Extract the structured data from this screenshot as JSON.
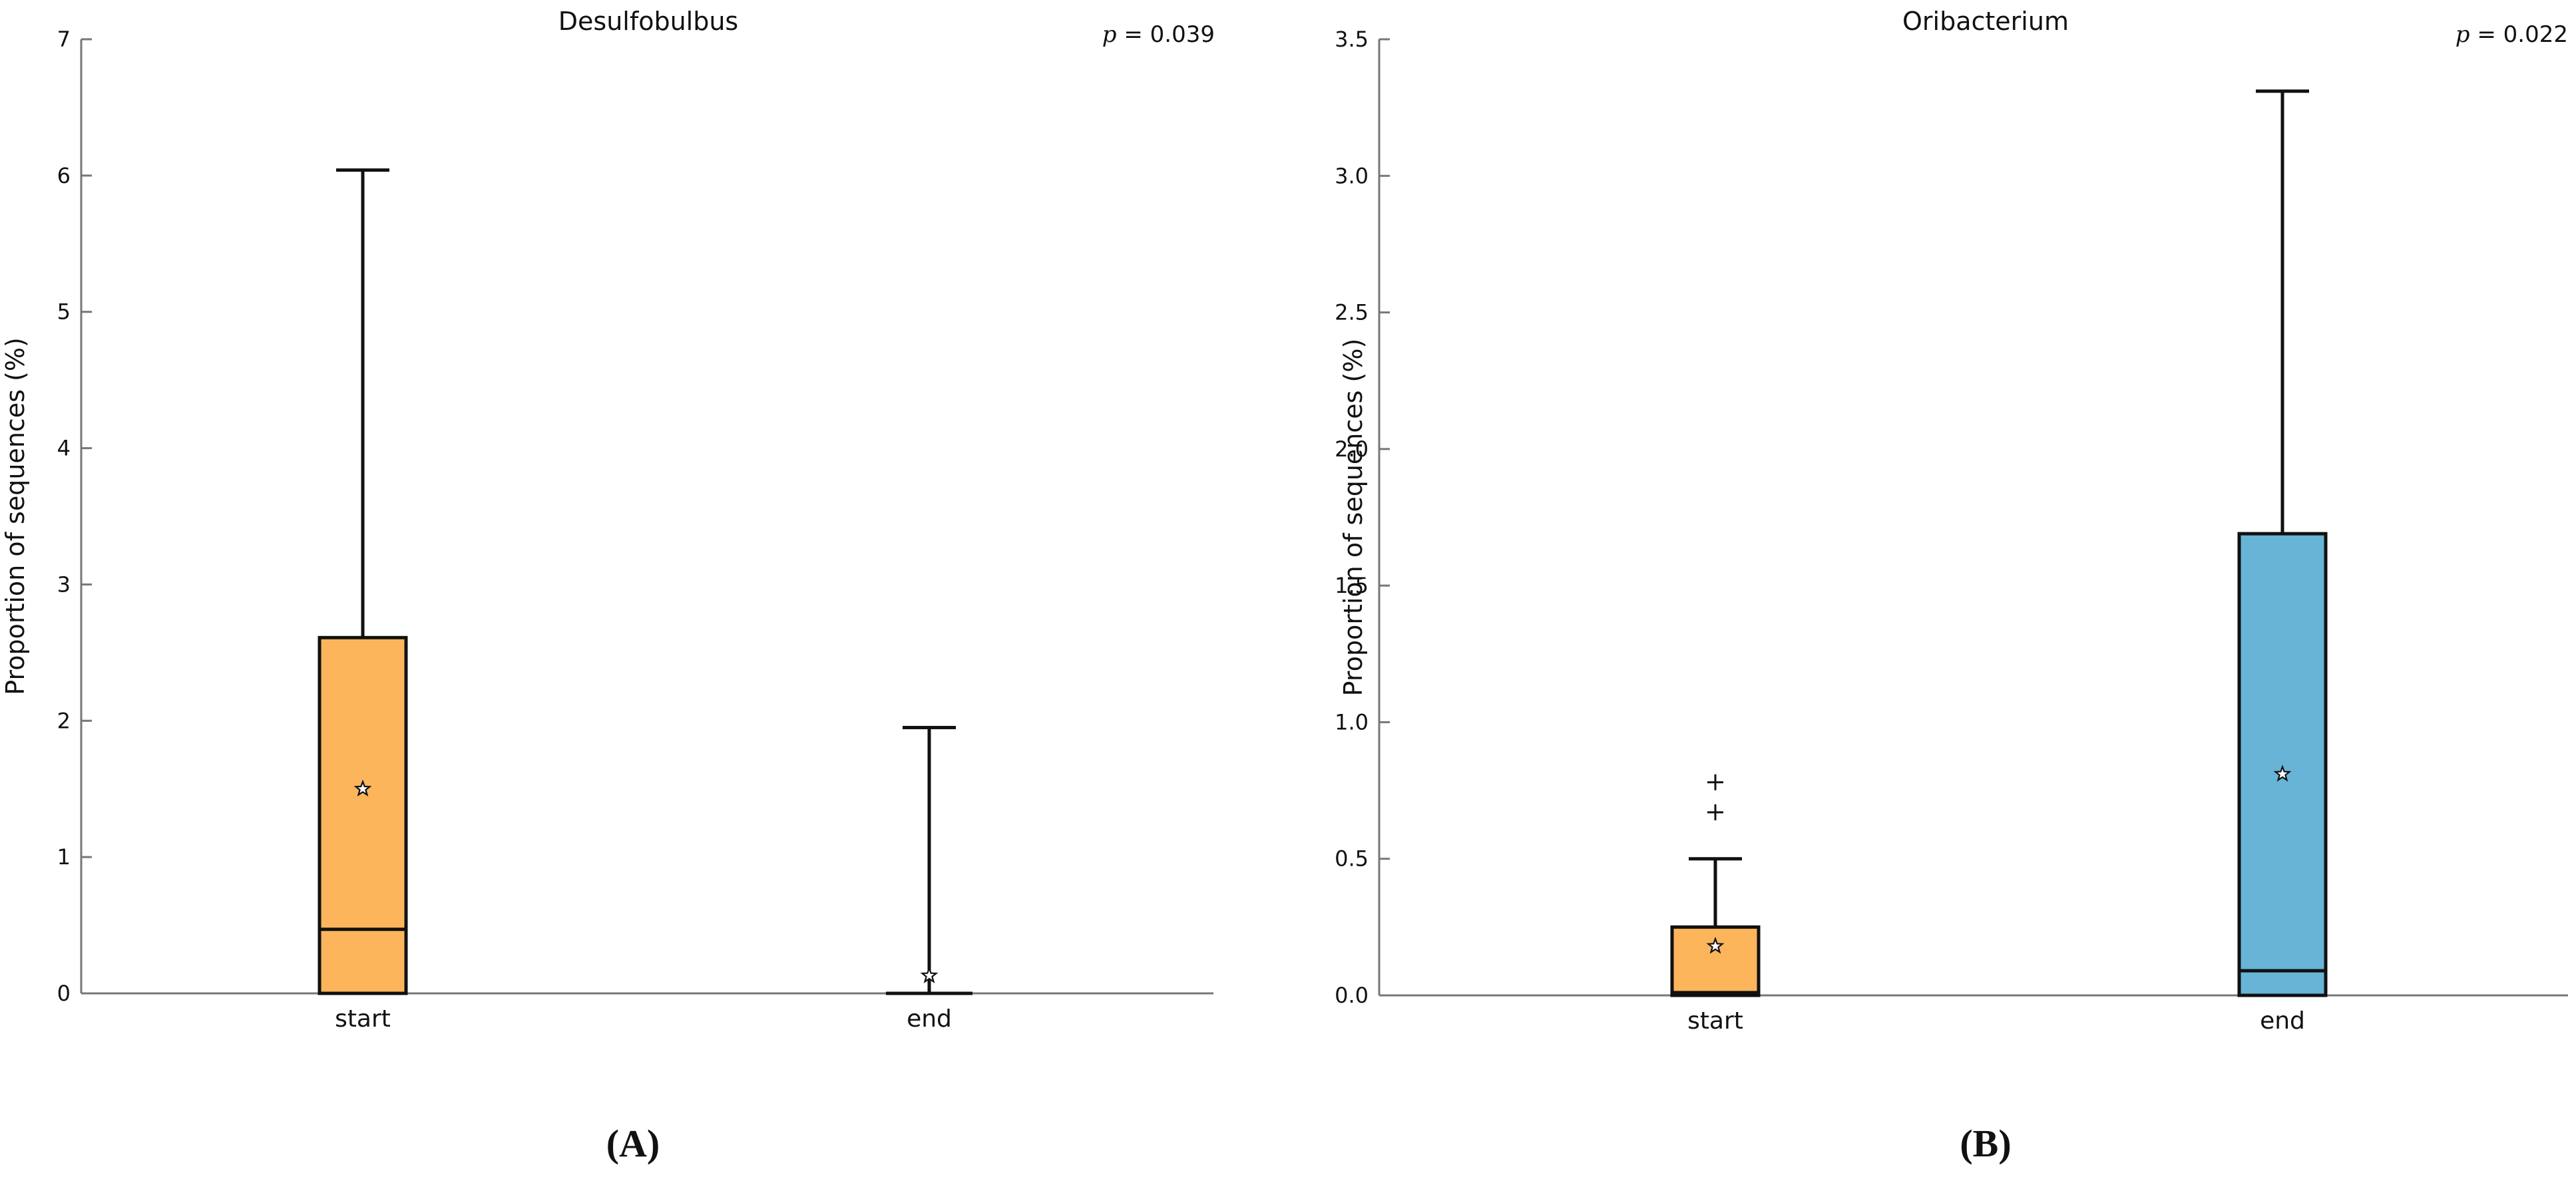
{
  "chart_data": [
    {
      "type": "box",
      "panel_label": "(A)",
      "title": "Desulfobulbus",
      "p_value": "p = 0.039",
      "ylabel": "Proportion of sequences (%)",
      "ylim": [
        0,
        7
      ],
      "yticks": [
        "0",
        "1",
        "2",
        "3",
        "4",
        "5",
        "6",
        "7"
      ],
      "categories": [
        "start",
        "end"
      ],
      "boxes": [
        {
          "category": "start",
          "color": "#FDB55B",
          "whisker_low": 0,
          "q1": 0,
          "median": 0.47,
          "q3": 2.61,
          "whisker_high": 6.04,
          "mean": 1.5,
          "outliers": []
        },
        {
          "category": "end",
          "color": "#67B4D6",
          "whisker_low": 0,
          "q1": 0,
          "median": 0,
          "q3": 0,
          "whisker_high": 1.95,
          "mean": 0.13,
          "outliers": []
        }
      ]
    },
    {
      "type": "box",
      "panel_label": "(B)",
      "title": "Oribacterium",
      "p_value": "p = 0.022",
      "ylabel": "Proportion of sequences (%)",
      "ylim": [
        0,
        3.5
      ],
      "yticks": [
        "0.0",
        "0.5",
        "1.0",
        "1.5",
        "2.0",
        "2.5",
        "3.0",
        "3.5"
      ],
      "categories": [
        "start",
        "end"
      ],
      "boxes": [
        {
          "category": "start",
          "color": "#FDB55B",
          "whisker_low": 0,
          "q1": 0,
          "median": 0.01,
          "q3": 0.25,
          "whisker_high": 0.5,
          "mean": 0.18,
          "outliers": [
            0.67,
            0.78
          ]
        },
        {
          "category": "end",
          "color": "#67B4D6",
          "whisker_low": 0,
          "q1": 0,
          "median": 0.09,
          "q3": 1.69,
          "whisker_high": 3.31,
          "mean": 0.81,
          "outliers": []
        }
      ]
    }
  ]
}
